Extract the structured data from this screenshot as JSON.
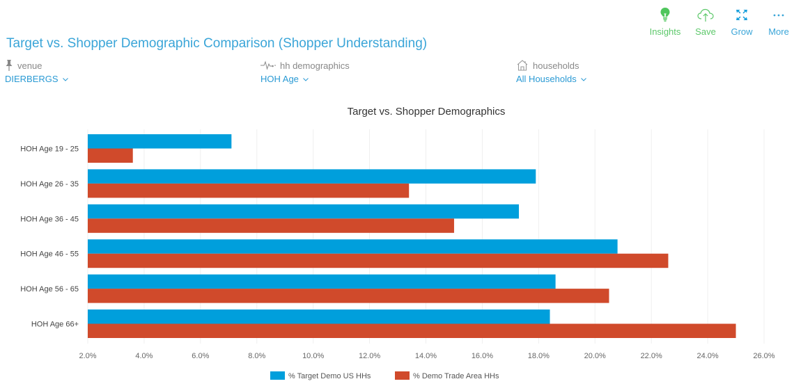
{
  "toolbar": {
    "items": [
      {
        "label": "Insights",
        "icon": "lightbulb-icon"
      },
      {
        "label": "Save",
        "icon": "cloud-upload-icon"
      },
      {
        "label": "Grow",
        "icon": "expand-icon"
      },
      {
        "label": "More",
        "icon": "more-dots-icon"
      }
    ]
  },
  "page": {
    "title": "Target vs. Shopper Demographic Comparison (Shopper Understanding)"
  },
  "filters": [
    {
      "label": "venue",
      "value": "DIERBERGS",
      "icon": "pin-icon"
    },
    {
      "label": "hh demographics",
      "value": "HOH Age",
      "icon": "pulse-icon"
    },
    {
      "label": "households",
      "value": "All Households",
      "icon": "house-icon"
    }
  ],
  "colors": {
    "series1": "#009fdc",
    "series2": "#d04a2b",
    "accent": "#3aa5d8",
    "insights": "#5cc86a"
  },
  "chart_data": {
    "type": "bar",
    "orientation": "horizontal",
    "title": "Target vs. Shopper Demographics",
    "xlabel": "",
    "ylabel": "",
    "categories": [
      "HOH Age 19 - 25",
      "HOH Age 26 - 35",
      "HOH Age 36 - 45",
      "HOH Age 46 - 55",
      "HOH Age 56 - 65",
      "HOH Age 66+"
    ],
    "series": [
      {
        "name": "% Target Demo US HHs",
        "values": [
          7.1,
          17.9,
          17.3,
          20.8,
          18.6,
          18.4
        ]
      },
      {
        "name": "% Demo Trade Area HHs",
        "values": [
          3.6,
          13.4,
          15.0,
          22.6,
          20.5,
          25.0
        ]
      }
    ],
    "xlim": [
      2.0,
      26.0
    ],
    "xticks": [
      "2.0%",
      "4.0%",
      "6.0%",
      "8.0%",
      "10.0%",
      "12.0%",
      "14.0%",
      "16.0%",
      "18.0%",
      "20.0%",
      "22.0%",
      "24.0%",
      "26.0%"
    ],
    "grid": true,
    "legend": "bottom"
  }
}
